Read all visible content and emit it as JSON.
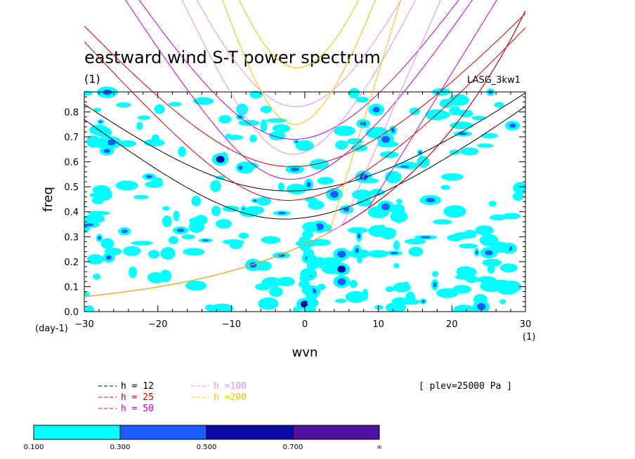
{
  "chart_data": {
    "type": "contour",
    "title": "eastward wind S-T power spectrum",
    "subtitle_left": "(1)",
    "subtitle_right": "LASG_3kw1",
    "xlabel": "wvn",
    "ylabel": "freq",
    "x_unit_label": "(1)",
    "y_unit_label": "(day-1)",
    "xlim": [
      -30,
      30
    ],
    "ylim": [
      0,
      0.88
    ],
    "x_ticks": [
      -30,
      -20,
      -10,
      0,
      10,
      20,
      30
    ],
    "x_tick_labels": [
      "−30",
      "−20",
      "−10",
      "0",
      "10",
      "20",
      "30"
    ],
    "y_ticks": [
      0.0,
      0.1,
      0.2,
      0.3,
      0.4,
      0.5,
      0.6,
      0.7,
      0.8
    ],
    "y_tick_labels": [
      "0.0",
      "0.1",
      "0.2",
      "0.3",
      "0.4",
      "0.5",
      "0.6",
      "0.7",
      "0.8"
    ],
    "annotation": "[ plev=25000 Pa ]",
    "dispersion_curves": [
      {
        "label": "h = 12",
        "h": 12,
        "color": "#000000"
      },
      {
        "label": "h = 25",
        "h": 25,
        "color": "#d00000"
      },
      {
        "label": "h = 50",
        "h": 50,
        "color": "#c000c0"
      },
      {
        "label": "h =100",
        "h": 100,
        "color": "#e090e0"
      },
      {
        "label": "h =200",
        "h": 200,
        "color": "#f0c000"
      }
    ],
    "colorbar": {
      "levels": [
        "0.100",
        "0.300",
        "0.500",
        "0.700",
        "∞"
      ],
      "colors": [
        "#00ffff",
        "#1a5cff",
        "#0a0aa8",
        "#5010a0"
      ]
    }
  }
}
